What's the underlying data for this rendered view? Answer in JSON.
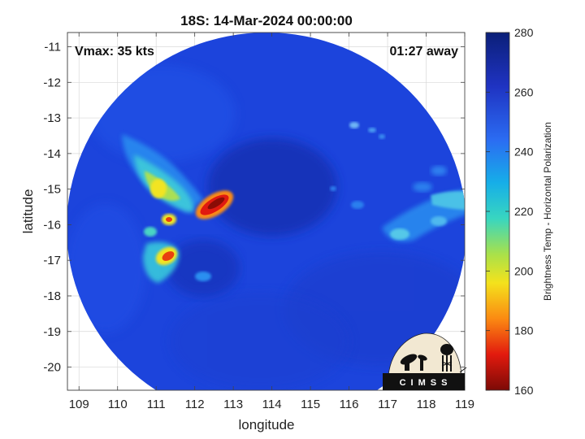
{
  "title": "18S: 14-Mar-2024 00:00:00",
  "vmax_label": "Vmax: 35 kts",
  "time_label": "01:27 away",
  "xlabel": "longitude",
  "ylabel": "latitude",
  "x_ticks": [
    "109",
    "110",
    "111",
    "112",
    "113",
    "114",
    "115",
    "116",
    "117",
    "118",
    "119"
  ],
  "y_ticks": [
    "-11",
    "-12",
    "-13",
    "-14",
    "-15",
    "-16",
    "-17",
    "-18",
    "-19",
    "-20"
  ],
  "colorbar": {
    "label": "Brightness Temp - Horizontal Polarization",
    "ticks": [
      "280",
      "260",
      "240",
      "220",
      "200",
      "180",
      "160"
    ]
  },
  "logo": {
    "text": "CIMSS"
  },
  "colors": {
    "ocean_background": "#1a3fd6",
    "warm_core": "#142aa8",
    "convection": "#e01a10"
  }
}
